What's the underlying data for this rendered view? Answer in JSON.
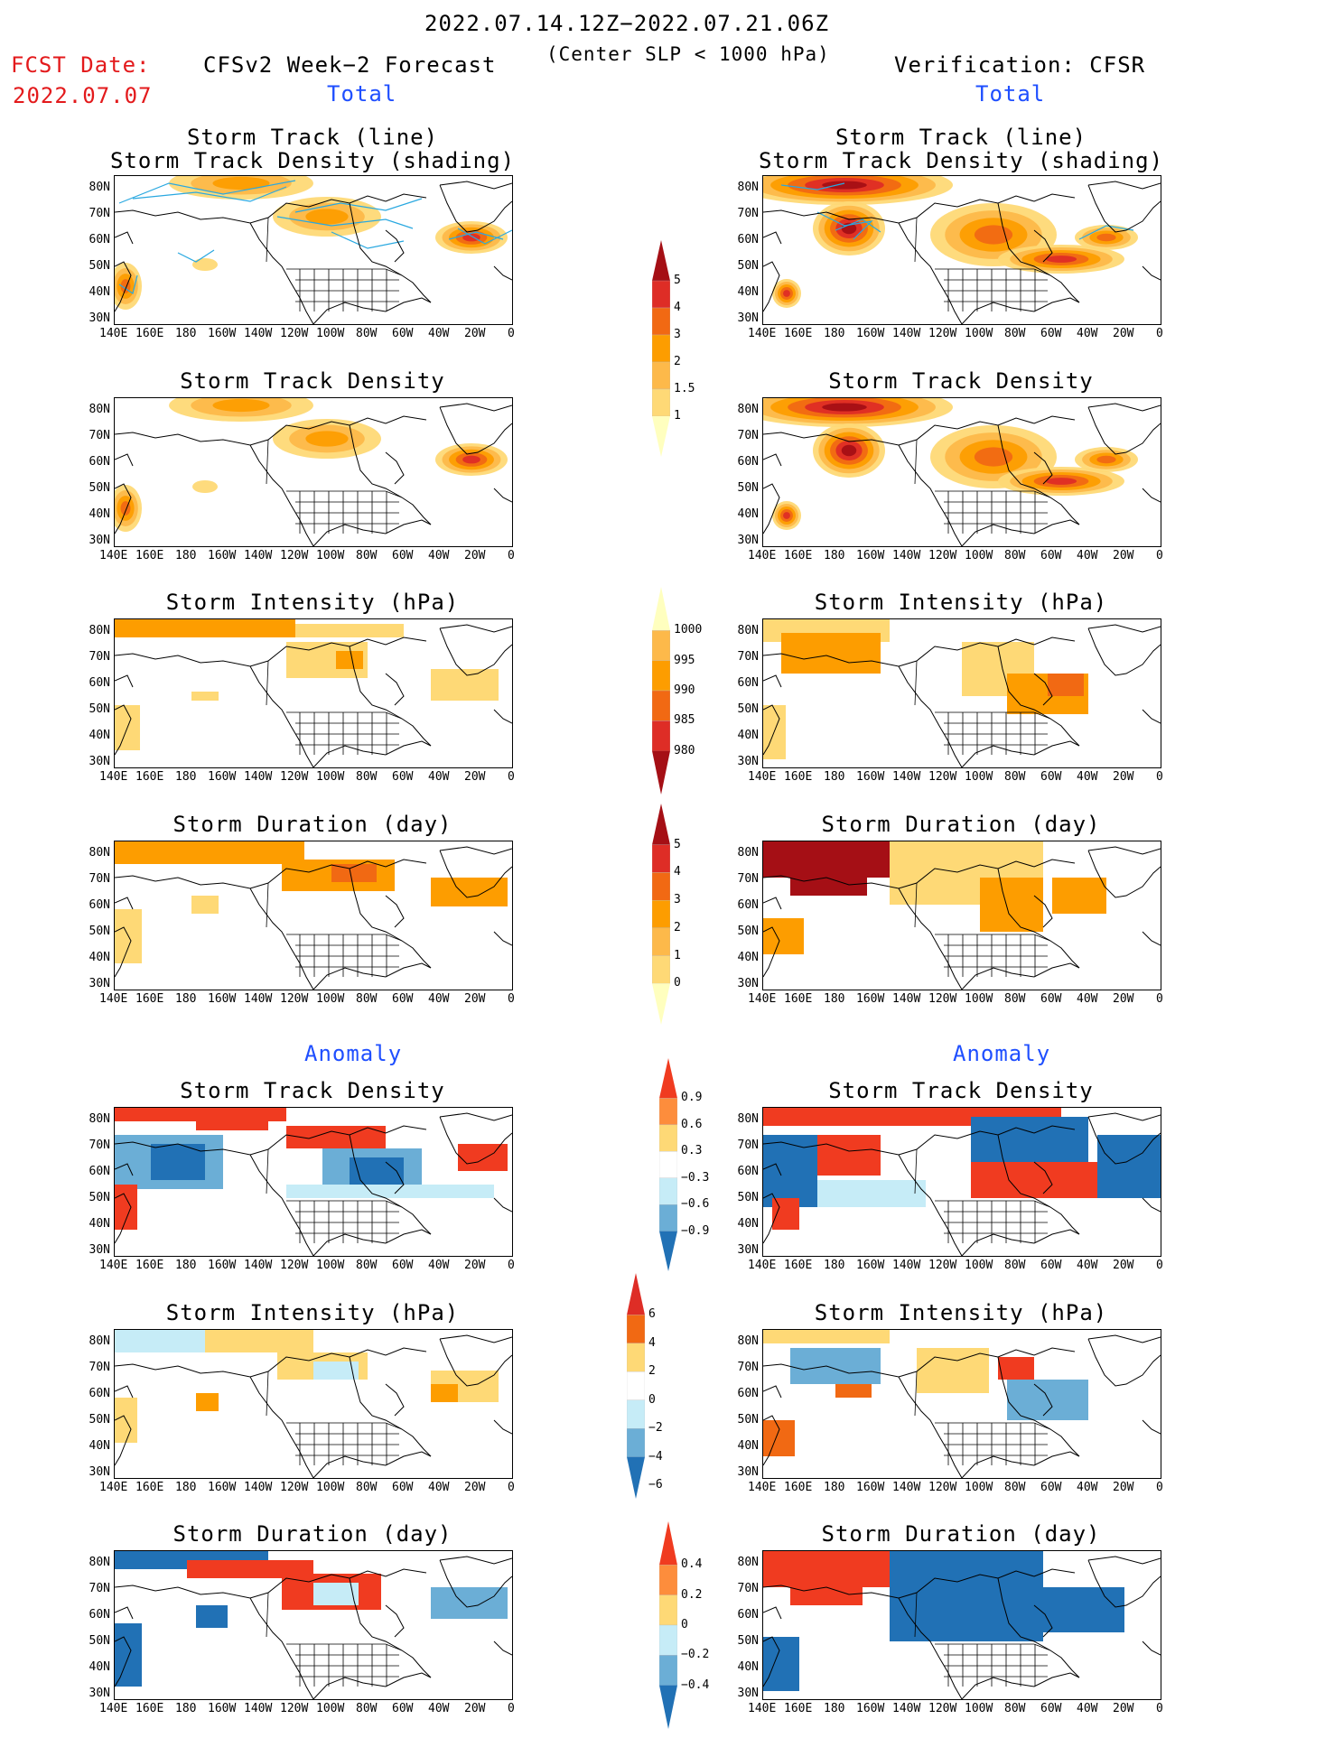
{
  "header": {
    "date_range": "2022.07.14.12Z−2022.07.21.06Z",
    "criterion": "(Center SLP < 1000 hPa)",
    "fcst_label": "FCST Date:",
    "fcst_date": "2022.07.07",
    "left_title": "CFSv2 Week−2 Forecast",
    "right_title": "Verification: CFSR"
  },
  "sections": {
    "total": "Total",
    "anomaly": "Anomaly"
  },
  "panel_titles": {
    "track_line": "Storm Track (line)",
    "track_shading": "Storm Track Density (shading)",
    "density": "Storm Track Density",
    "intensity": "Storm Intensity (hPa)",
    "duration": "Storm Duration (day)"
  },
  "axes": {
    "lat_ticks": [
      "80N",
      "70N",
      "60N",
      "50N",
      "40N",
      "30N"
    ],
    "lon_ticks": [
      "140E",
      "160E",
      "180",
      "160W",
      "140W",
      "120W",
      "100W",
      "80W",
      "60W",
      "40W",
      "20W",
      "0"
    ]
  },
  "colorbars": {
    "density": {
      "labels": [
        "5",
        "4",
        "3",
        "2",
        "1.5",
        "1"
      ],
      "colors": [
        "#a50f15",
        "#de2d26",
        "#f16913",
        "#fd9d00",
        "#fdb94a",
        "#fed976",
        "#ffffbf"
      ]
    },
    "intensity": {
      "labels": [
        "1000",
        "995",
        "990",
        "985",
        "980"
      ],
      "colors": [
        "#ffffbf",
        "#fdb94a",
        "#fd9d00",
        "#f16913",
        "#de2d26",
        "#a50f15"
      ]
    },
    "duration": {
      "labels": [
        "5",
        "4",
        "3",
        "2",
        "1",
        "0"
      ],
      "colors": [
        "#a50f15",
        "#de2d26",
        "#f16913",
        "#fd9d00",
        "#fdb94a",
        "#fed976",
        "#ffffbf"
      ]
    },
    "density_anom": {
      "labels": [
        "0.9",
        "0.6",
        "0.3",
        "−0.3",
        "−0.6",
        "−0.9"
      ],
      "colors": [
        "#f03b20",
        "#fd8d3c",
        "#fed976",
        "#ffffff",
        "#c6ecf7",
        "#6baed6",
        "#2171b5"
      ]
    },
    "intensity_anom": {
      "labels": [
        "6",
        "4",
        "2",
        "0",
        "−2",
        "−4",
        "−6"
      ],
      "colors": [
        "#de2d26",
        "#f16913",
        "#fed976",
        "#ffffff",
        "#c6ecf7",
        "#6baed6",
        "#2171b5"
      ]
    },
    "duration_anom": {
      "labels": [
        "0.4",
        "0.2",
        "0",
        "−0.2",
        "−0.4"
      ],
      "colors": [
        "#f03b20",
        "#fd8d3c",
        "#fed976",
        "#c6ecf7",
        "#6baed6",
        "#2171b5"
      ]
    }
  }
}
